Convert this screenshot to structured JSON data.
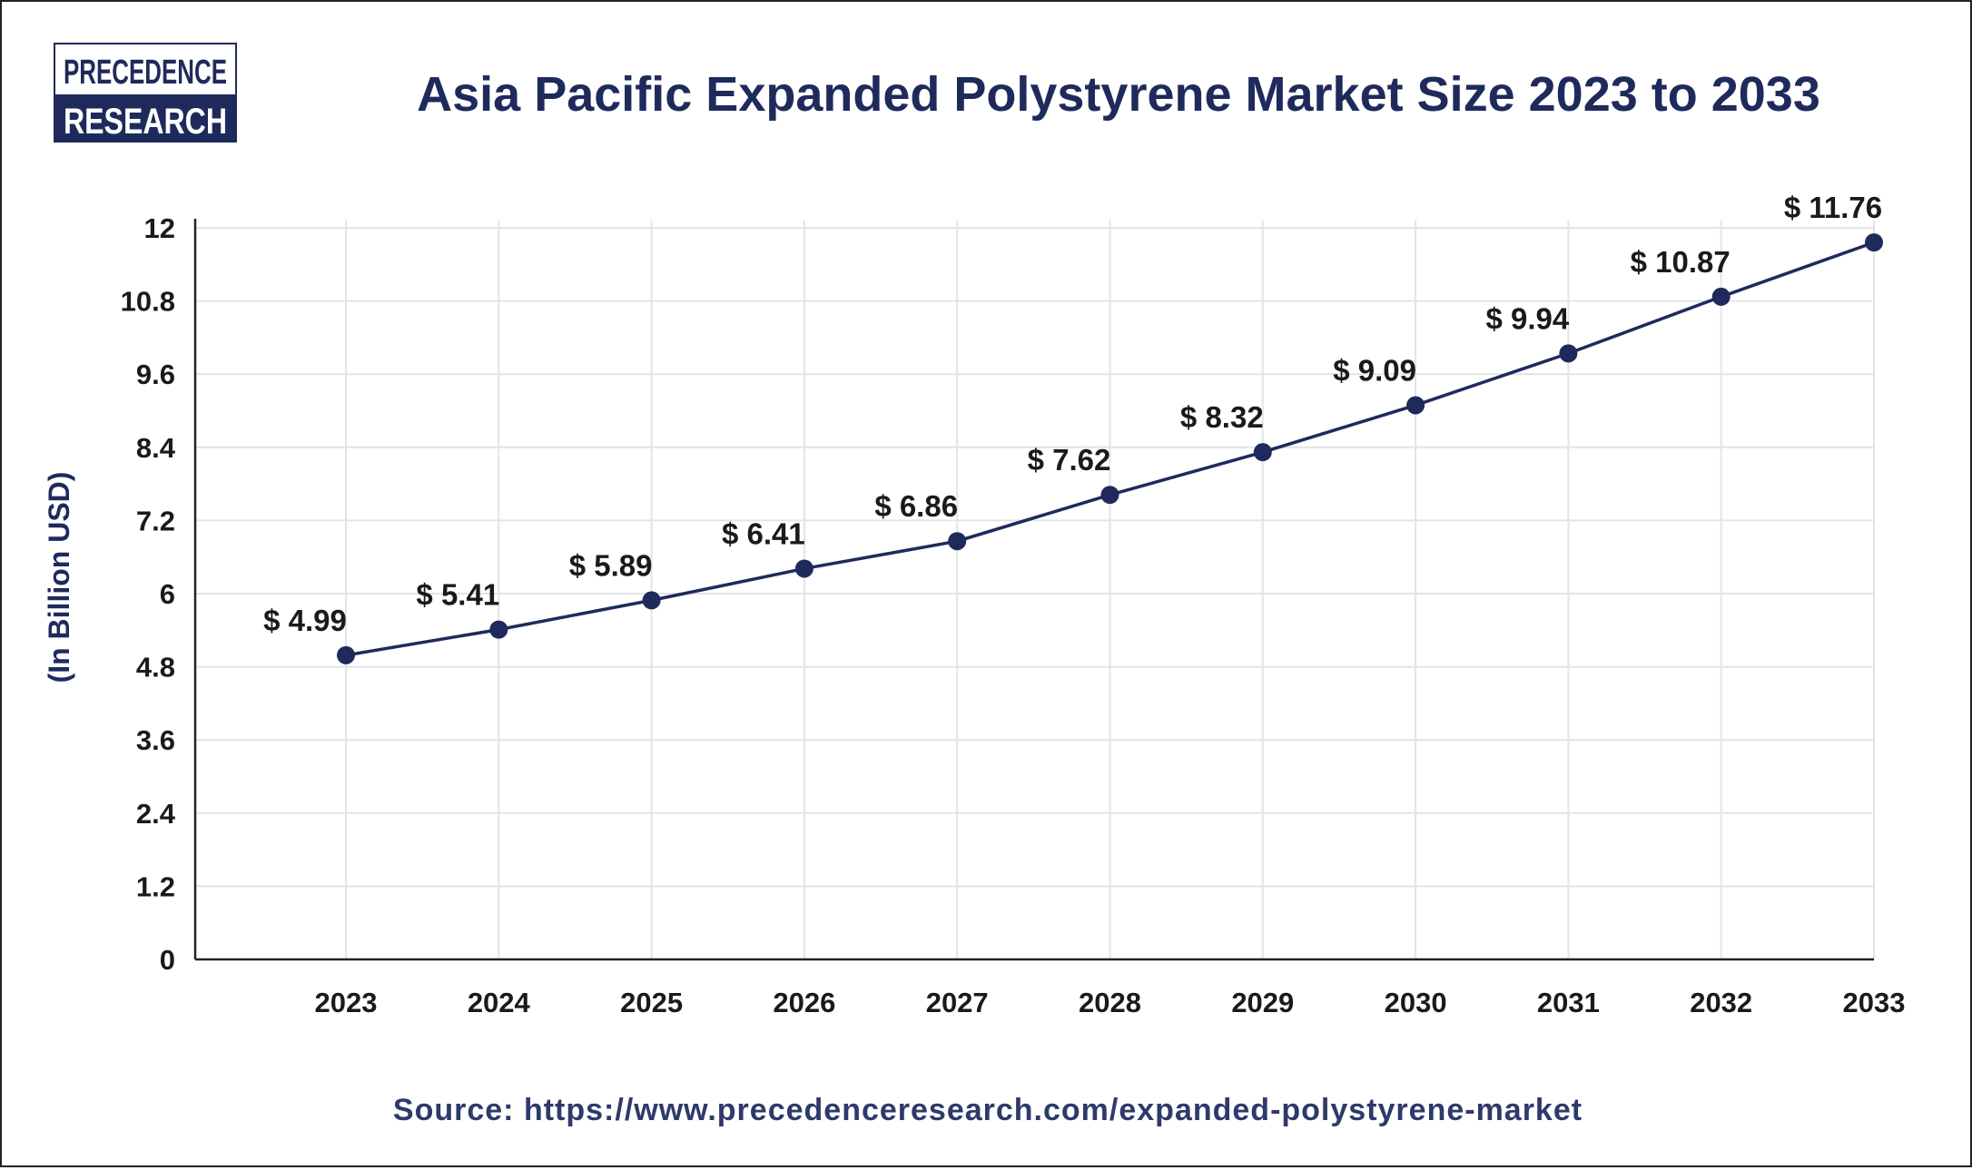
{
  "logo": {
    "line1": "PRECEDENCE",
    "line2": "RESEARCH"
  },
  "source": "Source: https://www.precedenceresearch.com/expanded-polystyrene-market",
  "colors": {
    "primary": "#1f2a5c",
    "grid": "#e2e4ea",
    "text": "#1a1a1a"
  },
  "chart_data": {
    "type": "line",
    "title": "Asia Pacific Expanded Polystyrene Market Size 2023 to 2033",
    "xlabel": "",
    "ylabel": "(In Billion USD)",
    "categories": [
      "2023",
      "2024",
      "2025",
      "2026",
      "2027",
      "2028",
      "2029",
      "2030",
      "2031",
      "2032",
      "2033"
    ],
    "values": [
      4.99,
      5.41,
      5.89,
      6.41,
      6.86,
      7.62,
      8.32,
      9.09,
      9.94,
      10.87,
      11.76
    ],
    "data_labels": [
      "$ 4.99",
      "$ 5.41",
      "$ 5.89",
      "$ 6.41",
      "$ 6.86",
      "$ 7.62",
      "$ 8.32",
      "$ 9.09",
      "$ 9.94",
      "$ 10.87",
      "$ 11.76"
    ],
    "yticks": [
      "0",
      "1.2",
      "2.4",
      "3.6",
      "4.8",
      "6",
      "7.2",
      "8.4",
      "9.6",
      "10.8",
      "12"
    ],
    "ylim": [
      0,
      12
    ],
    "grid": true,
    "legend": "none"
  }
}
